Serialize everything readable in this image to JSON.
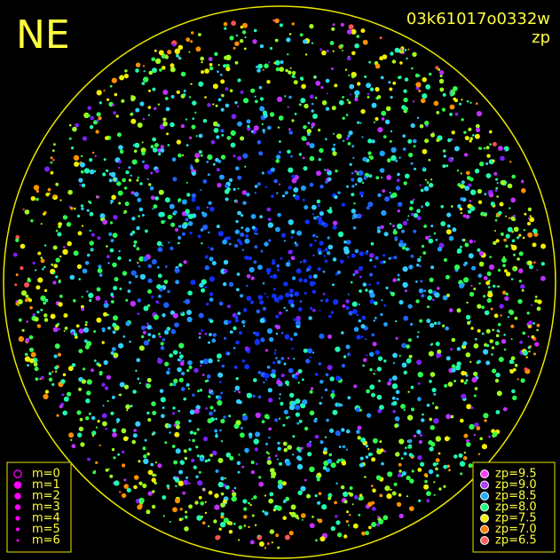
{
  "header": {
    "direction": "NE",
    "frame_id": "03k61017o0332w",
    "mode": "zp"
  },
  "magnitude_legend": {
    "color": "#ff00ff",
    "items": [
      "m=0",
      "m=1",
      "m=2",
      "m=3",
      "m=4",
      "m=5",
      "m=6"
    ]
  },
  "zp_legend": {
    "items": [
      {
        "label": "zp=9.5",
        "color": "#ff40ff"
      },
      {
        "label": "zp=9.0",
        "color": "#b040ff"
      },
      {
        "label": "zp=8.5",
        "color": "#20b0ff"
      },
      {
        "label": "zp=8.0",
        "color": "#20ff80"
      },
      {
        "label": "zp=7.5",
        "color": "#f0f000"
      },
      {
        "label": "zp=7.0",
        "color": "#ff8000"
      },
      {
        "label": "zp=6.5",
        "color": "#ff6060"
      }
    ]
  }
}
